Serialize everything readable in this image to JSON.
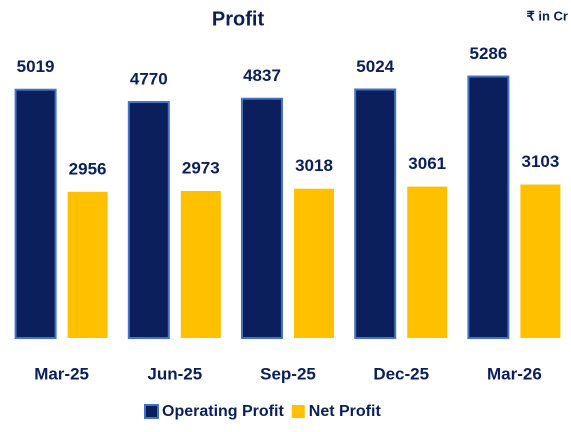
{
  "chart_data": {
    "type": "bar",
    "title": "Profit",
    "subtitle": "₹ in Cr",
    "categories": [
      "Mar-25",
      "Jun-25",
      "Sep-25",
      "Dec-25",
      "Mar-26"
    ],
    "series": [
      {
        "name": "Operating Profit",
        "color": "#0a1f5c",
        "values": [
          5019,
          4770,
          4837,
          5024,
          5286
        ]
      },
      {
        "name": "Net Profit",
        "color": "#ffc000",
        "values": [
          2956,
          2973,
          3018,
          3061,
          3103
        ]
      }
    ],
    "ylim": [
      0,
      5600
    ],
    "legend": "bottom"
  }
}
